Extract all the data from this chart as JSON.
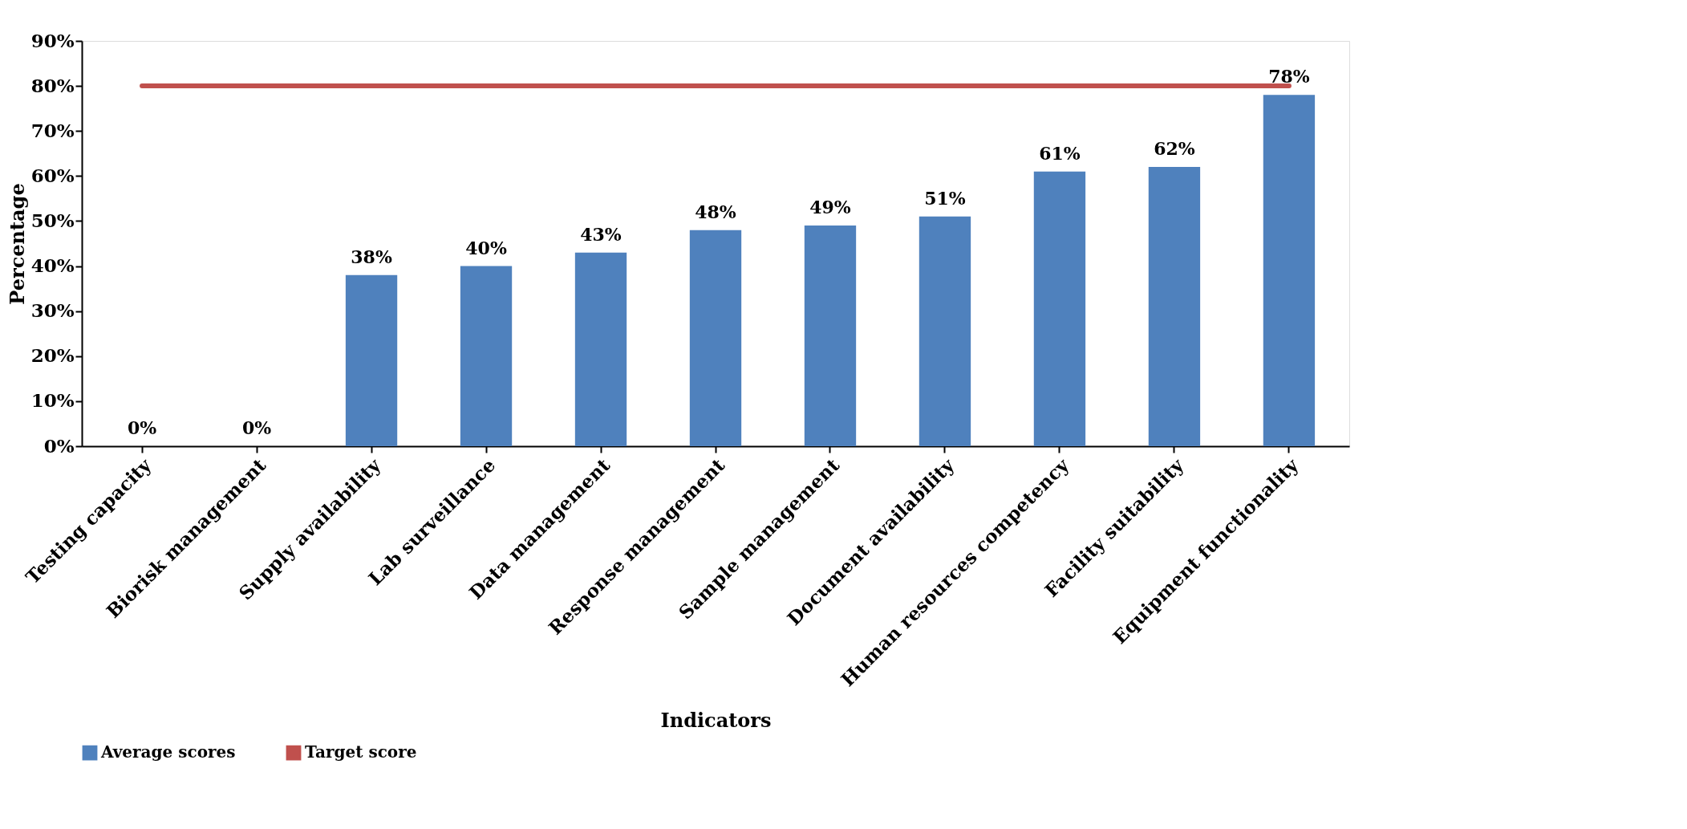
{
  "chart_data": {
    "type": "bar",
    "xlabel": "Indicators",
    "ylabel": "Percentage",
    "categories": [
      "Testing capacity",
      "Biorisk management",
      "Supply availability",
      "Lab surveillance",
      "Data management",
      "Response management",
      "Sample management",
      "Document availability",
      "Human resources competency",
      "Facility suitability",
      "Equipment functionality"
    ],
    "series": [
      {
        "name": "Average scores",
        "color": "#4f81bd",
        "values": [
          0,
          0,
          38,
          40,
          43,
          48,
          49,
          51,
          61,
          62,
          78
        ],
        "value_labels": [
          "0%",
          "0%",
          "38%",
          "40%",
          "43%",
          "48%",
          "49%",
          "51%",
          "61%",
          "62%",
          "78%"
        ]
      },
      {
        "name": "Target score",
        "type": "line",
        "color": "#c0504d",
        "values": [
          80,
          80,
          80,
          80,
          80,
          80,
          80,
          80,
          80,
          80,
          80
        ]
      }
    ],
    "ylim": [
      0,
      90
    ],
    "yticks": [
      {
        "value": 0,
        "label": "0%"
      },
      {
        "value": 10,
        "label": "10%"
      },
      {
        "value": 20,
        "label": "20%"
      },
      {
        "value": 30,
        "label": "30%"
      },
      {
        "value": 40,
        "label": "40%"
      },
      {
        "value": 50,
        "label": "50%"
      },
      {
        "value": 60,
        "label": "60%"
      },
      {
        "value": 70,
        "label": "70%"
      },
      {
        "value": 80,
        "label": "80%"
      },
      {
        "value": 90,
        "label": "90%"
      }
    ],
    "grid": false,
    "legend": "bottom"
  }
}
